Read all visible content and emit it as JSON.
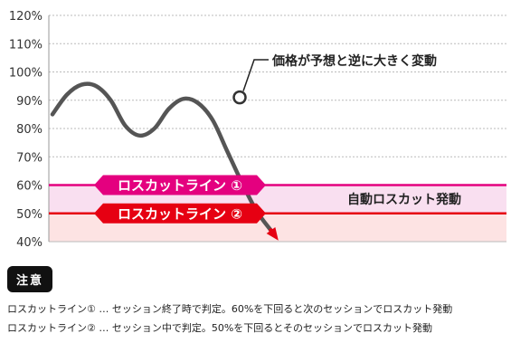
{
  "chart_data": {
    "type": "line",
    "y_ticks": [
      "120%",
      "110%",
      "100%",
      "90%",
      "80%",
      "70%",
      "60%",
      "50%",
      "40%"
    ],
    "ylim": [
      40,
      120
    ],
    "grid": true,
    "series": [
      {
        "x": [
          0,
          5,
          10,
          15,
          20,
          25,
          30,
          35,
          40,
          45,
          50,
          55,
          60,
          65,
          70,
          75,
          80,
          85,
          90,
          95,
          100
        ],
        "values": [
          85,
          92,
          95.5,
          95,
          90,
          81,
          77.5,
          80,
          87,
          90.5,
          89,
          83,
          72,
          61,
          51,
          44,
          null,
          null,
          null,
          null,
          null
        ],
        "color": "#555555"
      }
    ],
    "annotation": {
      "text": "価格が予想と逆に大きく変動",
      "point_value": 91
    },
    "band_label": "自動ロスカット発動",
    "lines": [
      {
        "label": "ロスカットライン ①",
        "value": 60,
        "color": "#e4007f"
      },
      {
        "label": "ロスカットライン ②",
        "value": 50,
        "color": "#e60012"
      }
    ],
    "bands": [
      {
        "from": 50,
        "to": 60,
        "color": "#f9dff0"
      },
      {
        "from": 40,
        "to": 50,
        "color": "#fde3e3"
      }
    ]
  },
  "notes": {
    "badge": "注意",
    "line1": "ロスカットライン① … セッション終了時で判定。60%を下回ると次のセッションでロスカット発動",
    "line2": "ロスカットライン② … セッション中で判定。50%を下回るとそのセッションでロスカット発動"
  }
}
